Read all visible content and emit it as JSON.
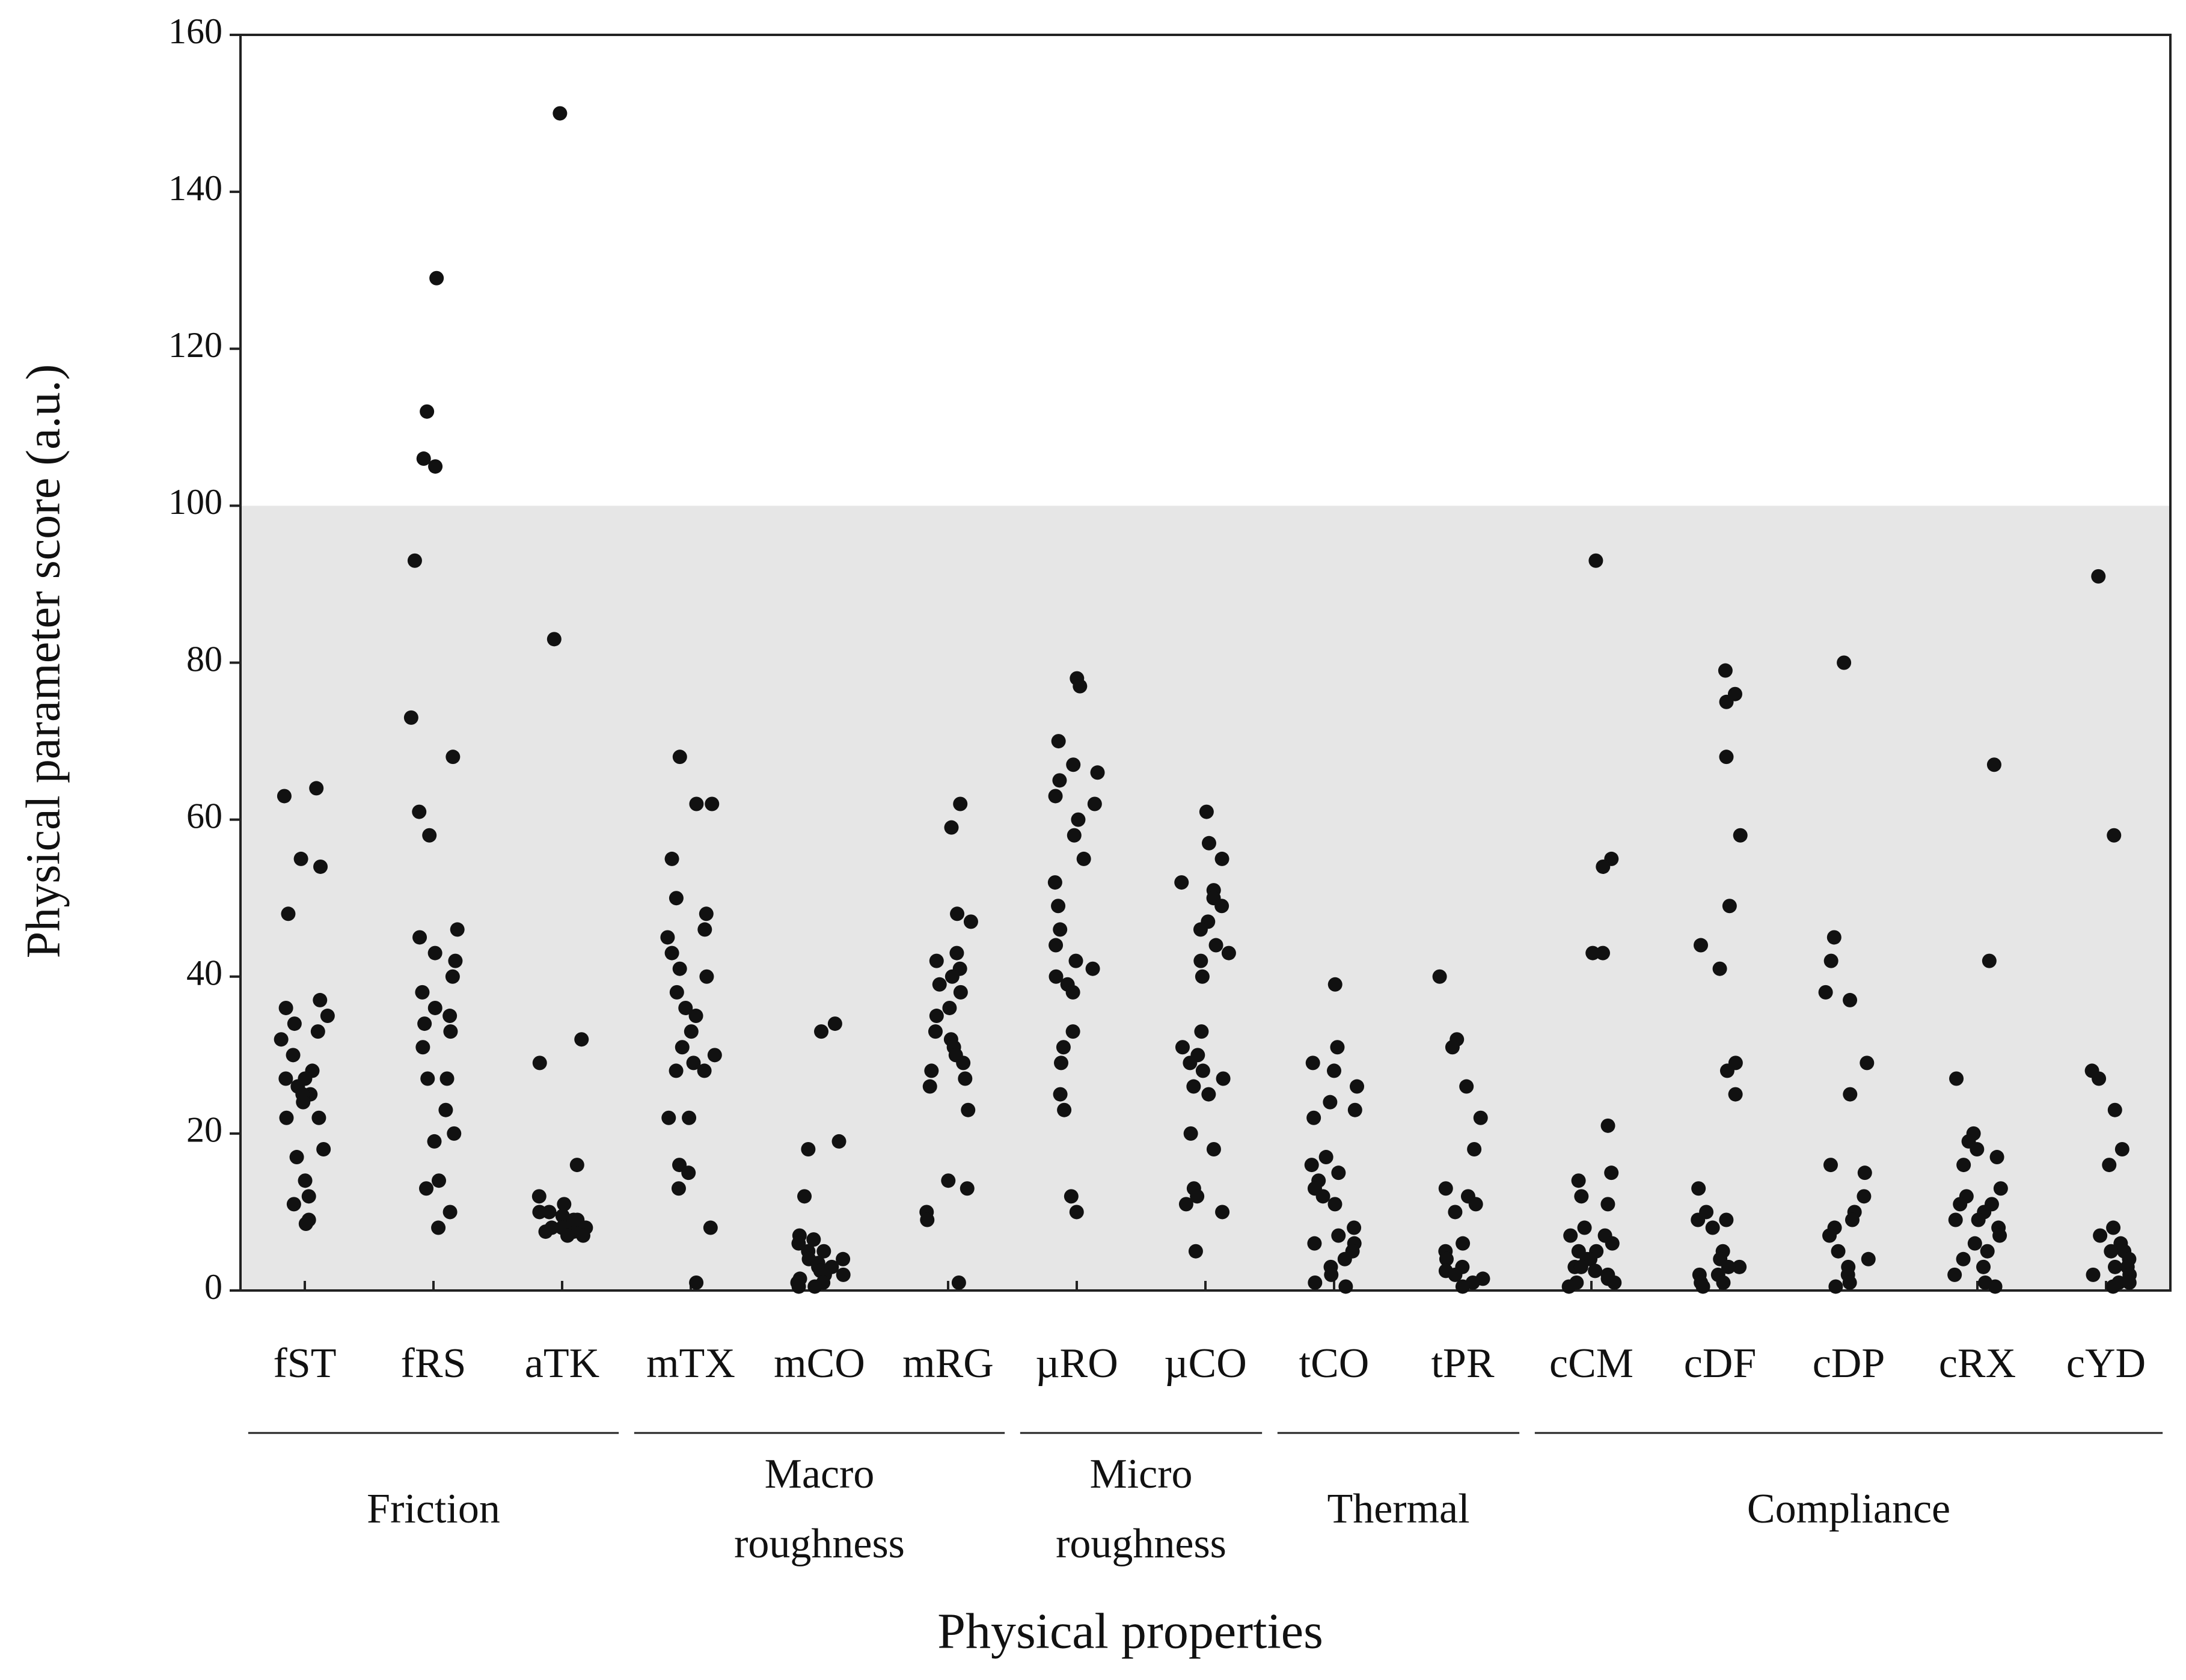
{
  "chart_data": {
    "type": "strip",
    "ylabel": "Physical parameter score (a.u.)",
    "xlabel": "Physical properties",
    "ylim": [
      0,
      160
    ],
    "yticks": [
      0,
      20,
      40,
      60,
      80,
      100,
      120,
      140,
      160
    ],
    "shaded_band": {
      "from": 0,
      "to": 100,
      "color": "#e6e6e6"
    },
    "color": "#111111",
    "groups": [
      {
        "label_lines": [
          "Friction"
        ],
        "categories": [
          {
            "name": "fST",
            "values": [
              64,
              63,
              55,
              54,
              48,
              37,
              36,
              35,
              34,
              33,
              32,
              30,
              28,
              27,
              27,
              26,
              25,
              25,
              24,
              22,
              22,
              18,
              17,
              14,
              12,
              11,
              9,
              8.5
            ]
          },
          {
            "name": "fRS",
            "values": [
              129,
              112,
              106,
              105,
              93,
              73,
              68,
              61,
              58,
              46,
              45,
              43,
              42,
              40,
              38,
              36,
              35,
              34,
              33,
              31,
              27,
              27,
              23,
              20,
              19,
              14,
              13,
              10,
              8
            ]
          },
          {
            "name": "aTK",
            "values": [
              150,
              83,
              32,
              29,
              16,
              12,
              11,
              10,
              9.5,
              9,
              8.5,
              8,
              8,
              7.5,
              7.5,
              7,
              7,
              8,
              9,
              10
            ]
          }
        ]
      },
      {
        "label_lines": [
          "Macro",
          "roughness"
        ],
        "categories": [
          {
            "name": "mTX",
            "values": [
              68,
              62,
              62,
              55,
              50,
              48,
              46,
              45,
              43,
              41,
              40,
              38,
              36,
              35,
              33,
              31,
              30,
              29,
              28,
              28,
              22,
              22,
              16,
              15,
              13,
              8,
              1
            ]
          },
          {
            "name": "mCO",
            "values": [
              34,
              33,
              19,
              18,
              12,
              7,
              6.5,
              6,
              5,
              5,
              4,
              4,
              3.5,
              3,
              3,
              2.5,
              2,
              2,
              1.5,
              1,
              1,
              0.5,
              0.5
            ]
          },
          {
            "name": "mRG",
            "values": [
              62,
              59,
              48,
              47,
              43,
              42,
              41,
              40,
              39,
              38,
              36,
              35,
              33,
              32,
              31,
              30,
              29,
              28,
              27,
              26,
              23,
              14,
              13,
              10,
              9,
              1
            ]
          }
        ]
      },
      {
        "label_lines": [
          "Micro",
          "roughness"
        ],
        "categories": [
          {
            "name": "µRO",
            "values": [
              78,
              77,
              70,
              67,
              66,
              65,
              63,
              62,
              60,
              58,
              55,
              52,
              49,
              46,
              44,
              42,
              41,
              40,
              39,
              38,
              33,
              31,
              29,
              25,
              23,
              12,
              10
            ]
          },
          {
            "name": "µCO",
            "values": [
              61,
              57,
              55,
              52,
              51,
              50,
              49,
              47,
              46,
              44,
              43,
              42,
              40,
              33,
              31,
              30,
              29,
              28,
              27,
              26,
              25,
              20,
              18,
              13,
              12,
              11,
              10,
              5
            ]
          }
        ]
      },
      {
        "label_lines": [
          "Thermal"
        ],
        "categories": [
          {
            "name": "tCO",
            "values": [
              39,
              31,
              29,
              28,
              26,
              24,
              23,
              22,
              17,
              16,
              15,
              14,
              13,
              12,
              11,
              8,
              7,
              6,
              6,
              5,
              4,
              3,
              2,
              1,
              0.5
            ]
          },
          {
            "name": "tPR",
            "values": [
              40,
              32,
              31,
              26,
              22,
              18,
              13,
              12,
              11,
              10,
              6,
              5,
              4,
              3,
              2.5,
              2,
              1.5,
              1,
              0.5
            ]
          }
        ]
      },
      {
        "label_lines": [
          "Compliance"
        ],
        "categories": [
          {
            "name": "cCM",
            "values": [
              93,
              55,
              54,
              43,
              43,
              21,
              15,
              14,
              12,
              11,
              8,
              7,
              7,
              6,
              5,
              5,
              4,
              4,
              3,
              3,
              2.5,
              2,
              1.5,
              1,
              1,
              0.5
            ]
          },
          {
            "name": "cDF",
            "values": [
              79,
              76,
              75,
              68,
              58,
              49,
              44,
              41,
              29,
              28,
              25,
              13,
              10,
              9,
              9,
              8,
              5,
              4,
              3,
              3,
              2,
              2,
              1,
              1,
              0.5
            ]
          },
          {
            "name": "cDP",
            "values": [
              80,
              45,
              42,
              38,
              37,
              29,
              25,
              16,
              15,
              12,
              10,
              9,
              8,
              7,
              5,
              4,
              3,
              2,
              1,
              0.5
            ]
          },
          {
            "name": "cRX",
            "values": [
              67,
              42,
              27,
              20,
              19,
              18,
              17,
              16,
              13,
              12,
              11,
              11,
              10,
              9,
              9,
              8,
              7,
              6,
              5,
              4,
              3,
              2,
              1,
              0.5
            ]
          },
          {
            "name": "cYD",
            "values": [
              91,
              58,
              28,
              27,
              23,
              18,
              16,
              8,
              7,
              6,
              5,
              5,
              4,
              3,
              3,
              2,
              2,
              1,
              1,
              0.5
            ]
          }
        ]
      }
    ]
  }
}
